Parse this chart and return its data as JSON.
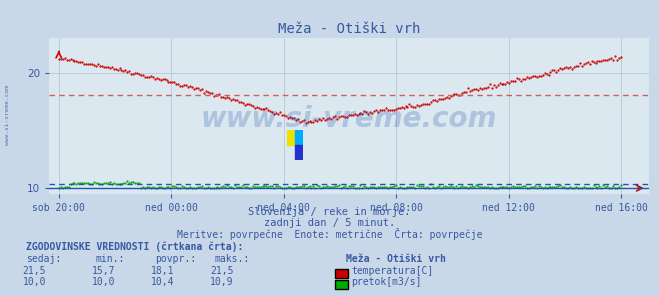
{
  "title": "Meža - Otiški vrh",
  "bg_color": "#c8d8e8",
  "plot_bg_color": "#dce8f0",
  "grid_color": "#b0c0d4",
  "text_color": "#3858a0",
  "x_labels": [
    "sob 20:00",
    "ned 00:00",
    "ned 04:00",
    "ned 08:00",
    "ned 12:00",
    "ned 16:00"
  ],
  "x_positions": [
    0,
    48,
    96,
    144,
    192,
    240
  ],
  "yticks": [
    10,
    20
  ],
  "ylim": [
    9.5,
    23.0
  ],
  "xlim": [
    -4,
    252
  ],
  "temp_avg": 18.1,
  "flow_avg": 10.4,
  "subtitle1": "Slovenija / reke in morje.",
  "subtitle2": "zadnji dan / 5 minut.",
  "subtitle3": "Meritve: povrpečne  Enote: metrične  Črta: povrpečje",
  "table_header": "ZGODOVINSKE VREDNOSTI (črtkana črta):",
  "col_headers": [
    "sedaj:",
    "min.:",
    "povpr.:",
    "maks.:"
  ],
  "temp_values": [
    "21,5",
    "15,7",
    "18,1",
    "21,5"
  ],
  "flow_values": [
    "10,0",
    "10,0",
    "10,4",
    "10,9"
  ],
  "legend_title": "Meža - Otiški vrh",
  "legend_temp": "temperatura[C]",
  "legend_flow": "pretok[m3/s]",
  "temp_color": "#cc0000",
  "flow_color": "#00aa00",
  "avg_line_color": "#cc6666",
  "avg_flow_line_color": "#3399ff",
  "axis_line_color": "#2255aa",
  "n_points": 288,
  "watermark": "www.si-vreme.com",
  "watermark_color": "#2255aa",
  "side_label": "www.si-vreme.com"
}
